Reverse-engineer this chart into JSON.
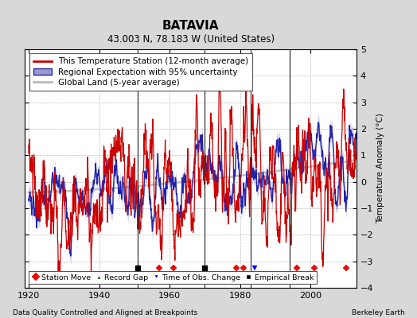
{
  "title": "BATAVIA",
  "subtitle": "43.003 N, 78.183 W (United States)",
  "ylabel": "Temperature Anomaly (°C)",
  "xlabel_left": "Data Quality Controlled and Aligned at Breakpoints",
  "xlabel_right": "Berkeley Earth",
  "ylim": [
    -4,
    5
  ],
  "xlim": [
    1919,
    2013
  ],
  "yticks": [
    -4,
    -3,
    -2,
    -1,
    0,
    1,
    2,
    3,
    4,
    5
  ],
  "xticks": [
    1920,
    1940,
    1960,
    1980,
    2000
  ],
  "vertical_lines": [
    1951,
    1970,
    1983,
    1994
  ],
  "station_moves": [
    1957,
    1961,
    1979,
    1981,
    1996,
    2001,
    2010
  ],
  "obs_changes": [
    1984
  ],
  "empirical_breaks": [
    1951,
    1970
  ],
  "background_color": "#d8d8d8",
  "plot_bg_color": "#ffffff",
  "grid_color": "#bbbbbb",
  "red_line_color": "#cc0000",
  "blue_line_color": "#2222aa",
  "blue_fill_color": "#9999cc",
  "gray_line_color": "#bbbbbb",
  "title_fontsize": 11,
  "subtitle_fontsize": 8.5,
  "legend_fontsize": 7.5,
  "axis_fontsize": 7.5,
  "tick_fontsize": 8
}
